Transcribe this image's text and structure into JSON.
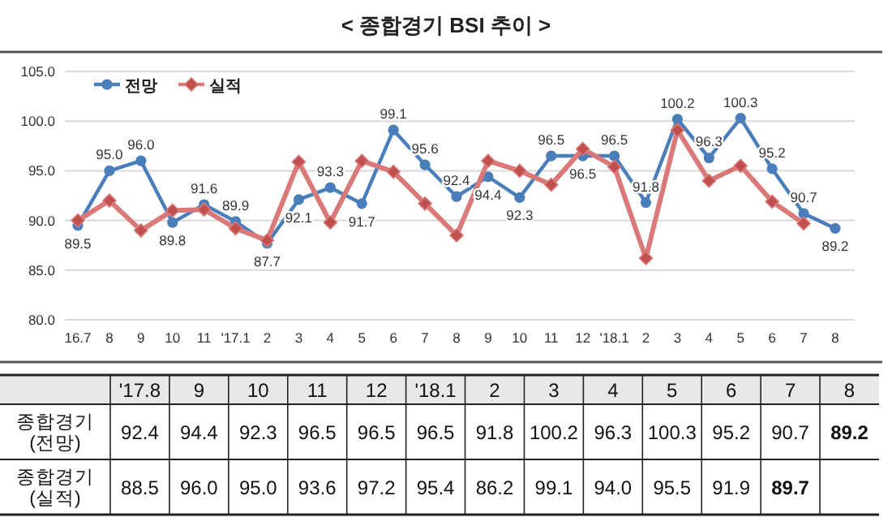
{
  "chart_data": [
    {
      "type": "line",
      "title": "< 종합경기 BSI 추이 >",
      "categories": [
        "16.7",
        "8",
        "9",
        "10",
        "11",
        "'17.1",
        "2",
        "3",
        "4",
        "5",
        "6",
        "7",
        "8",
        "9",
        "10",
        "11",
        "12",
        "'18.1",
        "2",
        "3",
        "4",
        "5",
        "6",
        "7",
        "8"
      ],
      "series": [
        {
          "name": "전망",
          "color": "#4a7ebb",
          "marker": "circle",
          "values": [
            89.5,
            95.0,
            96.0,
            89.8,
            91.6,
            89.9,
            87.7,
            92.1,
            93.3,
            91.7,
            99.1,
            95.6,
            92.4,
            94.4,
            92.3,
            96.5,
            96.5,
            96.5,
            91.8,
            100.2,
            96.3,
            100.3,
            95.2,
            90.7,
            89.2
          ],
          "value_labels": [
            "89.5",
            "95.0",
            "96.0",
            "89.8",
            "91.6",
            "89.9",
            "87.7",
            "92.1",
            "93.3",
            "91.7",
            "99.1",
            "95.6",
            "92.4",
            "94.4",
            "92.3",
            "96.5",
            "96.5",
            "96.5",
            "91.8",
            "100.2",
            "96.3",
            "100.3",
            "95.2",
            "90.7",
            "89.2"
          ]
        },
        {
          "name": "실적",
          "color": "#d9797a",
          "marker": "diamond",
          "values": [
            90.0,
            92.0,
            89.0,
            91.0,
            91.1,
            89.2,
            88.0,
            95.9,
            89.8,
            96.0,
            94.9,
            91.7,
            88.5,
            96.0,
            95.0,
            93.6,
            97.2,
            95.4,
            86.2,
            99.1,
            94.0,
            95.5,
            91.9,
            89.7,
            null
          ]
        }
      ],
      "ylim": [
        80,
        105
      ],
      "yticks": [
        {
          "value": 80,
          "label": "80.0"
        },
        {
          "value": 85,
          "label": "85.0"
        },
        {
          "value": 90,
          "label": "90.0"
        },
        {
          "value": 95,
          "label": "95.0"
        },
        {
          "value": 100,
          "label": "100.0"
        },
        {
          "value": 105,
          "label": "105.0"
        }
      ],
      "grid": "y",
      "legend": "top left"
    },
    {
      "type": "heatmap",
      "categories": [
        "'17.8",
        "9",
        "10",
        "11",
        "12",
        "'18.1",
        "2",
        "3",
        "4",
        "5",
        "6",
        "7",
        "8"
      ],
      "y_categories": [
        "종합경기 (전망)",
        "종합경기 (실적)"
      ],
      "cells": [
        [
          92.4,
          94.4,
          92.3,
          96.5,
          96.5,
          96.5,
          91.8,
          100.2,
          96.3,
          100.3,
          95.2,
          90.7,
          89.2
        ],
        [
          88.5,
          96.0,
          95.0,
          93.6,
          97.2,
          95.4,
          86.2,
          99.1,
          94.0,
          95.5,
          91.9,
          89.7,
          null
        ]
      ],
      "data_labels": true,
      "cell_labels": [
        [
          "92.4",
          "94.4",
          "92.3",
          "96.5",
          "96.5",
          "96.5",
          "91.8",
          "100.2",
          "96.3",
          "100.3",
          "95.2",
          "90.7",
          "89.2"
        ],
        [
          "88.5",
          "96.0",
          "95.0",
          "93.6",
          "97.2",
          "95.4",
          "86.2",
          "99.1",
          "94.0",
          "95.5",
          "91.9",
          "89.7",
          null
        ]
      ]
    }
  ]
}
